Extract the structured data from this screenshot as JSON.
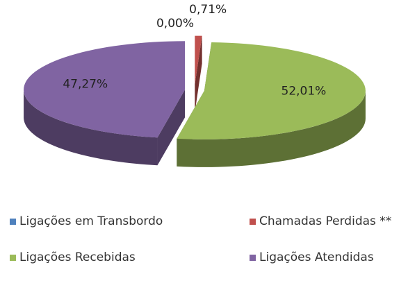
{
  "chart_data": {
    "type": "pie",
    "categories": [
      "Ligações em Transbordo",
      "Chamadas Perdidas **",
      "Ligações Recebidas",
      "Ligações Atendidas"
    ],
    "values": [
      0.0,
      0.71,
      52.01,
      47.27
    ],
    "value_labels": [
      "0,00%",
      "0,71%",
      "52,01%",
      "47,27%"
    ],
    "colors": [
      "#4f81bd",
      "#c0504d",
      "#9bbb59",
      "#8064a2"
    ],
    "legend": "bottom"
  }
}
